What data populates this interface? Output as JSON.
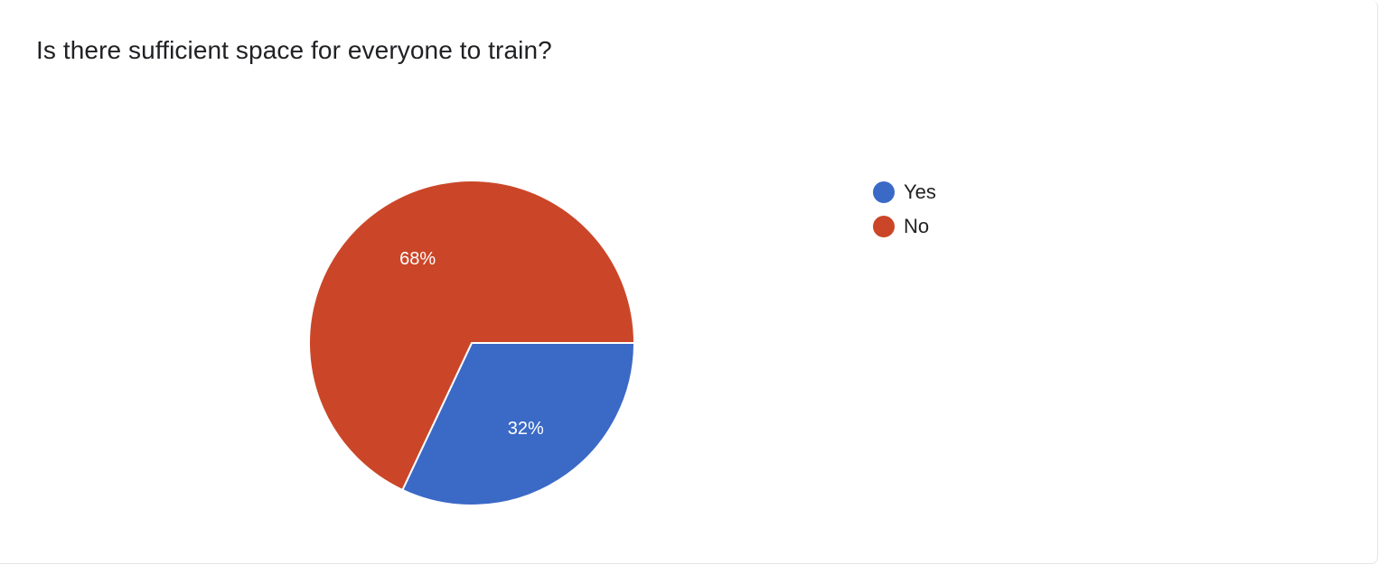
{
  "chart_data": {
    "type": "pie",
    "title": "Is there sufficient space for everyone to train?",
    "legend_position": "right",
    "slices": [
      {
        "label": "Yes",
        "value": 32,
        "display": "32%",
        "color": "#3b69c6"
      },
      {
        "label": "No",
        "value": 68,
        "display": "68%",
        "color": "#cb4628"
      }
    ]
  }
}
